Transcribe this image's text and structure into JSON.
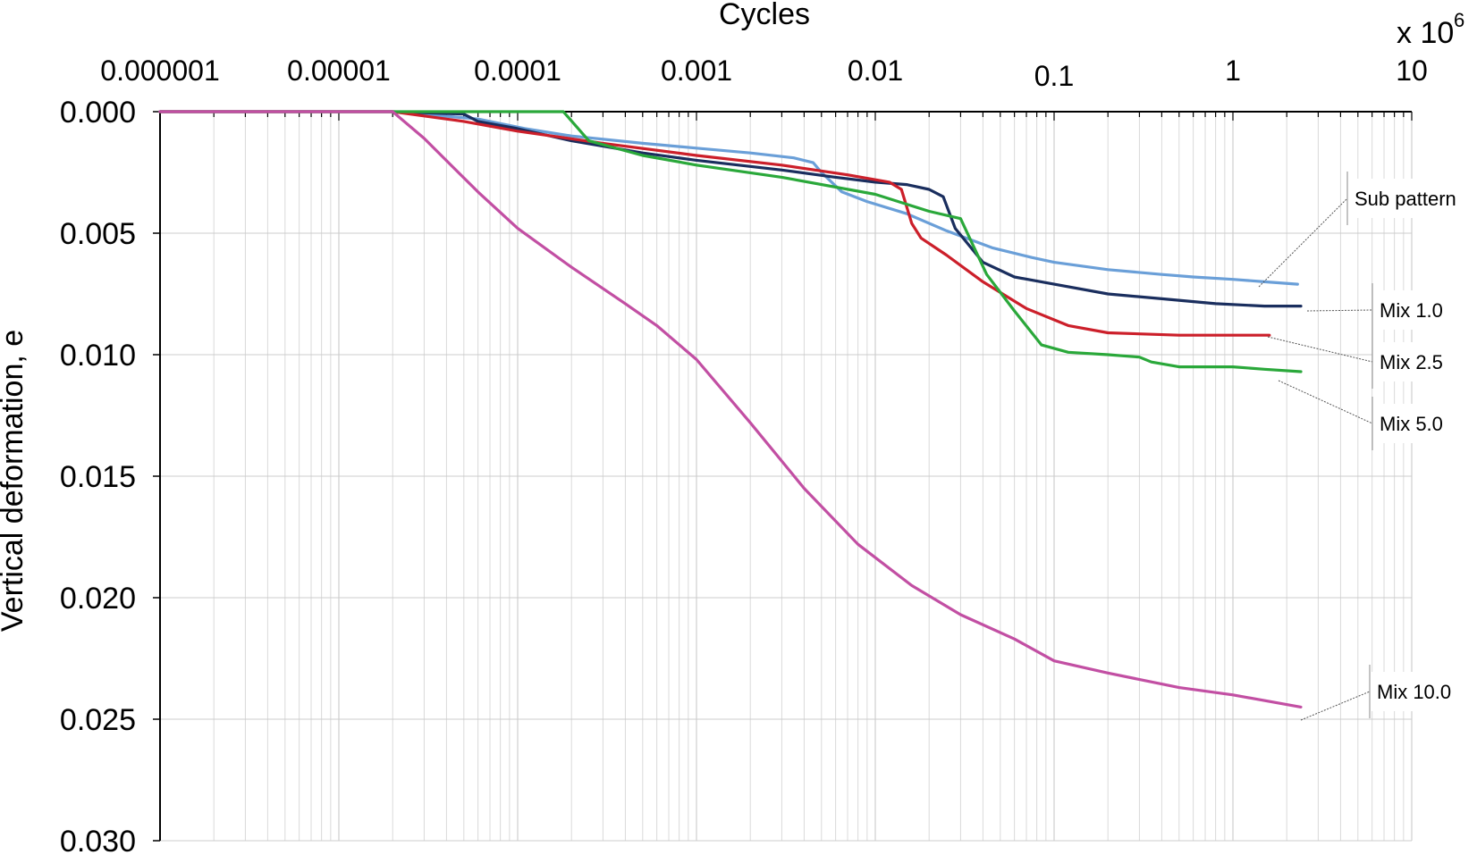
{
  "chart_data": {
    "type": "line",
    "xlabel": "Cycles",
    "x_multiplier_label": "x 10",
    "x_multiplier_exponent": "6",
    "ylabel": "Vertical deformation, e",
    "x_scale": "log",
    "xlim": [
      1e-06,
      10
    ],
    "ylim": [
      0,
      0.03
    ],
    "y_inverted": true,
    "x_axis_position": "top",
    "grid": true,
    "x_tick_labels": [
      "0.000001",
      "0.00001",
      "0.0001",
      "0.001",
      "0.01",
      "0.1",
      "1",
      "10"
    ],
    "x_tick_values": [
      1e-06,
      1e-05,
      0.0001,
      0.001,
      0.01,
      0.1,
      1,
      10
    ],
    "y_tick_labels": [
      "0.000",
      "0.005",
      "0.010",
      "0.015",
      "0.020",
      "0.025",
      "0.030"
    ],
    "y_tick_values": [
      0,
      0.005,
      0.01,
      0.015,
      0.02,
      0.025,
      0.03
    ],
    "legend": "callouts-right",
    "series": [
      {
        "name": "Sub pattern",
        "color": "#6a9fd8",
        "points": [
          [
            1e-06,
            0
          ],
          [
            2e-05,
            0
          ],
          [
            6e-05,
            0.0003
          ],
          [
            0.00011,
            0.0007
          ],
          [
            0.0002,
            0.001
          ],
          [
            0.0005,
            0.0013
          ],
          [
            0.001,
            0.0015
          ],
          [
            0.002,
            0.0017
          ],
          [
            0.0035,
            0.0019
          ],
          [
            0.0045,
            0.0021
          ],
          [
            0.005,
            0.0025
          ],
          [
            0.0065,
            0.0033
          ],
          [
            0.009,
            0.0037
          ],
          [
            0.015,
            0.0042
          ],
          [
            0.025,
            0.0049
          ],
          [
            0.045,
            0.0056
          ],
          [
            0.075,
            0.006
          ],
          [
            0.1,
            0.0062
          ],
          [
            0.2,
            0.0065
          ],
          [
            0.4,
            0.0067
          ],
          [
            0.6,
            0.0068
          ],
          [
            1,
            0.0069
          ],
          [
            1.5,
            0.007
          ],
          [
            2.3,
            0.0071
          ]
        ]
      },
      {
        "name": "Mix 1.0",
        "color": "#1a2e5e",
        "points": [
          [
            1e-06,
            0
          ],
          [
            2e-05,
            0
          ],
          [
            5e-05,
            0.0001
          ],
          [
            6e-05,
            0.0004
          ],
          [
            0.0001,
            0.0007
          ],
          [
            0.0002,
            0.0012
          ],
          [
            0.0005,
            0.0017
          ],
          [
            0.001,
            0.002
          ],
          [
            0.003,
            0.0024
          ],
          [
            0.006,
            0.0027
          ],
          [
            0.01,
            0.0029
          ],
          [
            0.015,
            0.003
          ],
          [
            0.02,
            0.0032
          ],
          [
            0.024,
            0.0035
          ],
          [
            0.028,
            0.0048
          ],
          [
            0.04,
            0.0062
          ],
          [
            0.06,
            0.0068
          ],
          [
            0.1,
            0.0071
          ],
          [
            0.2,
            0.0075
          ],
          [
            0.4,
            0.0077
          ],
          [
            0.8,
            0.0079
          ],
          [
            1.5,
            0.008
          ],
          [
            2.4,
            0.008
          ]
        ]
      },
      {
        "name": "Mix 2.5",
        "color": "#cc1f2a",
        "points": [
          [
            1e-06,
            0
          ],
          [
            2e-05,
            0
          ],
          [
            5e-05,
            0.0004
          ],
          [
            0.0001,
            0.0008
          ],
          [
            0.0003,
            0.0013
          ],
          [
            0.001,
            0.0018
          ],
          [
            0.003,
            0.0022
          ],
          [
            0.007,
            0.0026
          ],
          [
            0.012,
            0.0029
          ],
          [
            0.014,
            0.0032
          ],
          [
            0.016,
            0.0046
          ],
          [
            0.018,
            0.0052
          ],
          [
            0.025,
            0.0059
          ],
          [
            0.04,
            0.007
          ],
          [
            0.07,
            0.0081
          ],
          [
            0.12,
            0.0088
          ],
          [
            0.2,
            0.0091
          ],
          [
            0.5,
            0.0092
          ],
          [
            1,
            0.0092
          ],
          [
            1.6,
            0.0092
          ]
        ]
      },
      {
        "name": "Mix 5.0",
        "color": "#2aa83a",
        "points": [
          [
            1e-06,
            0
          ],
          [
            2e-05,
            0
          ],
          [
            0.0001,
            0
          ],
          [
            0.00018,
            0
          ],
          [
            0.00025,
            0.0012
          ],
          [
            0.0005,
            0.0018
          ],
          [
            0.001,
            0.0022
          ],
          [
            0.003,
            0.0027
          ],
          [
            0.01,
            0.0034
          ],
          [
            0.02,
            0.0041
          ],
          [
            0.03,
            0.0044
          ],
          [
            0.042,
            0.0067
          ],
          [
            0.06,
            0.0082
          ],
          [
            0.085,
            0.0096
          ],
          [
            0.12,
            0.0099
          ],
          [
            0.2,
            0.01
          ],
          [
            0.3,
            0.0101
          ],
          [
            0.35,
            0.0103
          ],
          [
            0.5,
            0.0105
          ],
          [
            1,
            0.0105
          ],
          [
            1.5,
            0.0106
          ],
          [
            2.4,
            0.0107
          ]
        ]
      },
      {
        "name": "Mix 10.0",
        "color": "#c24fa3",
        "points": [
          [
            1e-06,
            0
          ],
          [
            2e-05,
            0
          ],
          [
            3e-05,
            0.0011
          ],
          [
            6e-05,
            0.0033
          ],
          [
            0.0001,
            0.0048
          ],
          [
            0.0002,
            0.0064
          ],
          [
            0.0004,
            0.0079
          ],
          [
            0.0006,
            0.0088
          ],
          [
            0.001,
            0.0102
          ],
          [
            0.002,
            0.0128
          ],
          [
            0.004,
            0.0155
          ],
          [
            0.008,
            0.0178
          ],
          [
            0.016,
            0.0195
          ],
          [
            0.03,
            0.0207
          ],
          [
            0.06,
            0.0217
          ],
          [
            0.1,
            0.0226
          ],
          [
            0.2,
            0.0231
          ],
          [
            0.5,
            0.0237
          ],
          [
            1,
            0.024
          ],
          [
            2.4,
            0.0245
          ]
        ]
      }
    ],
    "annotations": [
      {
        "text": "Sub pattern",
        "series": "Sub pattern"
      },
      {
        "text": "Mix 1.0",
        "series": "Mix 1.0"
      },
      {
        "text": "Mix 2.5",
        "series": "Mix 2.5"
      },
      {
        "text": "Mix 5.0",
        "series": "Mix 5.0"
      },
      {
        "text": "Mix 10.0",
        "series": "Mix 10.0"
      }
    ]
  }
}
